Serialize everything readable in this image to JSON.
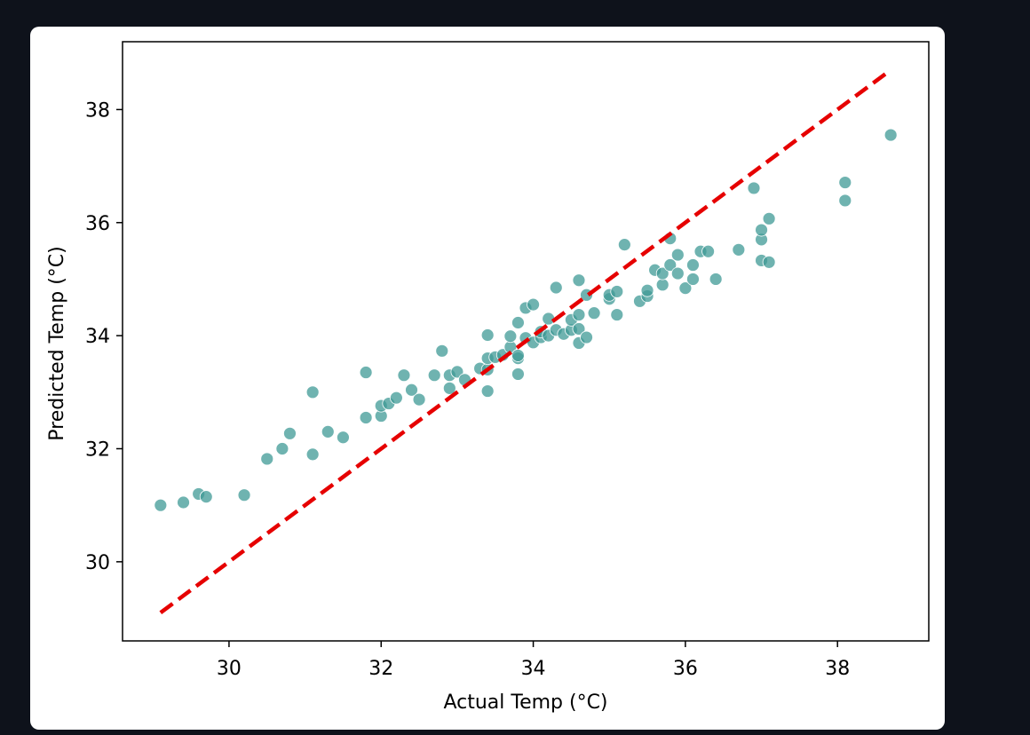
{
  "colors": {
    "background": "#0e121b",
    "card": "#ffffff",
    "points": "#3f9a96",
    "identity_line": "#e60000"
  },
  "chart_data": {
    "type": "scatter",
    "title": "",
    "xlabel": "Actual Temp (°C)",
    "ylabel": "Predicted Temp (°C)",
    "xlim": [
      28.6,
      39.2
    ],
    "ylim": [
      28.6,
      39.2
    ],
    "xticks": [
      30,
      32,
      34,
      36,
      38
    ],
    "yticks": [
      30,
      32,
      34,
      36,
      38
    ],
    "grid": false,
    "legend": false,
    "reference_line": {
      "style": "dashed",
      "x": [
        29.1,
        38.7
      ],
      "y": [
        29.1,
        38.7
      ]
    },
    "points": [
      {
        "x": 29.1,
        "y": 31.0
      },
      {
        "x": 29.4,
        "y": 31.05
      },
      {
        "x": 29.6,
        "y": 31.2
      },
      {
        "x": 29.7,
        "y": 31.15
      },
      {
        "x": 30.2,
        "y": 31.18
      },
      {
        "x": 30.5,
        "y": 31.82
      },
      {
        "x": 30.7,
        "y": 32.0
      },
      {
        "x": 30.8,
        "y": 32.27
      },
      {
        "x": 31.1,
        "y": 31.9
      },
      {
        "x": 31.1,
        "y": 33.0
      },
      {
        "x": 31.3,
        "y": 32.3
      },
      {
        "x": 31.5,
        "y": 32.2
      },
      {
        "x": 31.8,
        "y": 32.55
      },
      {
        "x": 31.8,
        "y": 33.35
      },
      {
        "x": 32.0,
        "y": 32.58
      },
      {
        "x": 32.0,
        "y": 32.76
      },
      {
        "x": 32.1,
        "y": 32.8
      },
      {
        "x": 32.2,
        "y": 32.9
      },
      {
        "x": 32.3,
        "y": 33.3
      },
      {
        "x": 32.4,
        "y": 33.04
      },
      {
        "x": 32.5,
        "y": 32.87
      },
      {
        "x": 32.7,
        "y": 33.3
      },
      {
        "x": 32.8,
        "y": 33.73
      },
      {
        "x": 32.9,
        "y": 33.3
      },
      {
        "x": 32.9,
        "y": 33.07
      },
      {
        "x": 33.0,
        "y": 33.36
      },
      {
        "x": 33.1,
        "y": 33.22
      },
      {
        "x": 33.3,
        "y": 33.42
      },
      {
        "x": 33.4,
        "y": 33.02
      },
      {
        "x": 33.4,
        "y": 33.4
      },
      {
        "x": 33.4,
        "y": 33.6
      },
      {
        "x": 33.4,
        "y": 34.01
      },
      {
        "x": 33.5,
        "y": 33.62
      },
      {
        "x": 33.6,
        "y": 33.66
      },
      {
        "x": 33.7,
        "y": 33.8
      },
      {
        "x": 33.7,
        "y": 33.99
      },
      {
        "x": 33.8,
        "y": 33.32
      },
      {
        "x": 33.8,
        "y": 33.6
      },
      {
        "x": 33.8,
        "y": 33.65
      },
      {
        "x": 33.8,
        "y": 34.23
      },
      {
        "x": 33.9,
        "y": 33.96
      },
      {
        "x": 33.9,
        "y": 34.49
      },
      {
        "x": 34.0,
        "y": 33.88
      },
      {
        "x": 34.0,
        "y": 34.55
      },
      {
        "x": 34.1,
        "y": 33.97
      },
      {
        "x": 34.1,
        "y": 34.07
      },
      {
        "x": 34.2,
        "y": 34.0
      },
      {
        "x": 34.2,
        "y": 34.3
      },
      {
        "x": 34.3,
        "y": 34.1
      },
      {
        "x": 34.3,
        "y": 34.85
      },
      {
        "x": 34.4,
        "y": 34.03
      },
      {
        "x": 34.5,
        "y": 34.1
      },
      {
        "x": 34.5,
        "y": 34.28
      },
      {
        "x": 34.6,
        "y": 33.87
      },
      {
        "x": 34.6,
        "y": 34.12
      },
      {
        "x": 34.6,
        "y": 34.37
      },
      {
        "x": 34.6,
        "y": 34.98
      },
      {
        "x": 34.7,
        "y": 33.97
      },
      {
        "x": 34.7,
        "y": 34.72
      },
      {
        "x": 34.8,
        "y": 34.4
      },
      {
        "x": 35.0,
        "y": 34.65
      },
      {
        "x": 35.0,
        "y": 34.72
      },
      {
        "x": 35.1,
        "y": 34.37
      },
      {
        "x": 35.1,
        "y": 34.78
      },
      {
        "x": 35.2,
        "y": 35.61
      },
      {
        "x": 35.4,
        "y": 34.61
      },
      {
        "x": 35.5,
        "y": 34.7
      },
      {
        "x": 35.5,
        "y": 34.8
      },
      {
        "x": 35.6,
        "y": 35.16
      },
      {
        "x": 35.7,
        "y": 34.9
      },
      {
        "x": 35.7,
        "y": 35.1
      },
      {
        "x": 35.8,
        "y": 35.25
      },
      {
        "x": 35.8,
        "y": 35.72
      },
      {
        "x": 35.9,
        "y": 35.1
      },
      {
        "x": 35.9,
        "y": 35.43
      },
      {
        "x": 36.0,
        "y": 34.84
      },
      {
        "x": 36.1,
        "y": 35.0
      },
      {
        "x": 36.1,
        "y": 35.25
      },
      {
        "x": 36.2,
        "y": 35.49
      },
      {
        "x": 36.3,
        "y": 35.49
      },
      {
        "x": 36.4,
        "y": 35.0
      },
      {
        "x": 36.7,
        "y": 35.52
      },
      {
        "x": 36.9,
        "y": 36.61
      },
      {
        "x": 37.0,
        "y": 35.33
      },
      {
        "x": 37.0,
        "y": 35.7
      },
      {
        "x": 37.0,
        "y": 35.87
      },
      {
        "x": 37.1,
        "y": 35.3
      },
      {
        "x": 37.1,
        "y": 36.07
      },
      {
        "x": 38.1,
        "y": 36.39
      },
      {
        "x": 38.1,
        "y": 36.71
      },
      {
        "x": 38.7,
        "y": 37.55
      }
    ]
  }
}
